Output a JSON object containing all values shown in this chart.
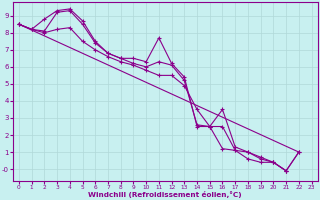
{
  "line1_x": [
    0,
    1,
    2,
    3,
    4,
    5,
    6,
    7,
    8,
    9,
    10,
    11,
    12,
    13,
    14,
    15,
    16,
    17,
    18,
    19,
    20,
    21,
    22
  ],
  "line1_y": [
    8.5,
    8.2,
    8.8,
    9.3,
    9.4,
    8.7,
    7.5,
    6.8,
    6.5,
    6.5,
    6.3,
    7.7,
    6.2,
    5.4,
    2.5,
    2.5,
    3.5,
    1.3,
    1.0,
    0.7,
    0.4,
    -0.1,
    1.0
  ],
  "line2_x": [
    0,
    1,
    2,
    3,
    4,
    5,
    6,
    7,
    8,
    9,
    10,
    11,
    12,
    13,
    14,
    15,
    16,
    17,
    18,
    19,
    20,
    21,
    22
  ],
  "line2_y": [
    8.5,
    8.2,
    8.1,
    9.2,
    9.3,
    8.5,
    7.4,
    6.8,
    6.5,
    6.2,
    6.0,
    6.3,
    6.1,
    5.2,
    2.6,
    2.5,
    2.5,
    1.1,
    1.0,
    0.6,
    0.4,
    -0.1,
    1.0
  ],
  "line3_x": [
    0,
    1,
    2,
    3,
    4,
    5,
    6,
    7,
    8,
    9,
    10,
    11,
    12,
    13,
    14,
    15,
    16,
    17,
    18,
    19,
    20,
    21
  ],
  "line3_y": [
    8.5,
    8.2,
    8.0,
    8.2,
    8.3,
    7.5,
    7.0,
    6.6,
    6.3,
    6.1,
    5.8,
    5.5,
    5.5,
    4.9,
    3.5,
    2.5,
    1.2,
    1.1,
    0.6,
    0.4,
    0.4,
    -0.1
  ],
  "line4_x": [
    0,
    22
  ],
  "line4_y": [
    8.5,
    1.0
  ],
  "color": "#8B008B",
  "bg_color": "#c8f0f0",
  "grid_color": "#b0d8d8",
  "xlabel": "Windchill (Refroidissement éolien,°C)",
  "xlim": [
    -0.5,
    23.5
  ],
  "ylim": [
    -0.7,
    9.8
  ],
  "xticks": [
    0,
    1,
    2,
    3,
    4,
    5,
    6,
    7,
    8,
    9,
    10,
    11,
    12,
    13,
    14,
    15,
    16,
    17,
    18,
    19,
    20,
    21,
    22,
    23
  ],
  "yticks": [
    0,
    1,
    2,
    3,
    4,
    5,
    6,
    7,
    8,
    9
  ],
  "ytick_labels": [
    "-0",
    "1",
    "2",
    "3",
    "4",
    "5",
    "6",
    "7",
    "8",
    "9"
  ]
}
